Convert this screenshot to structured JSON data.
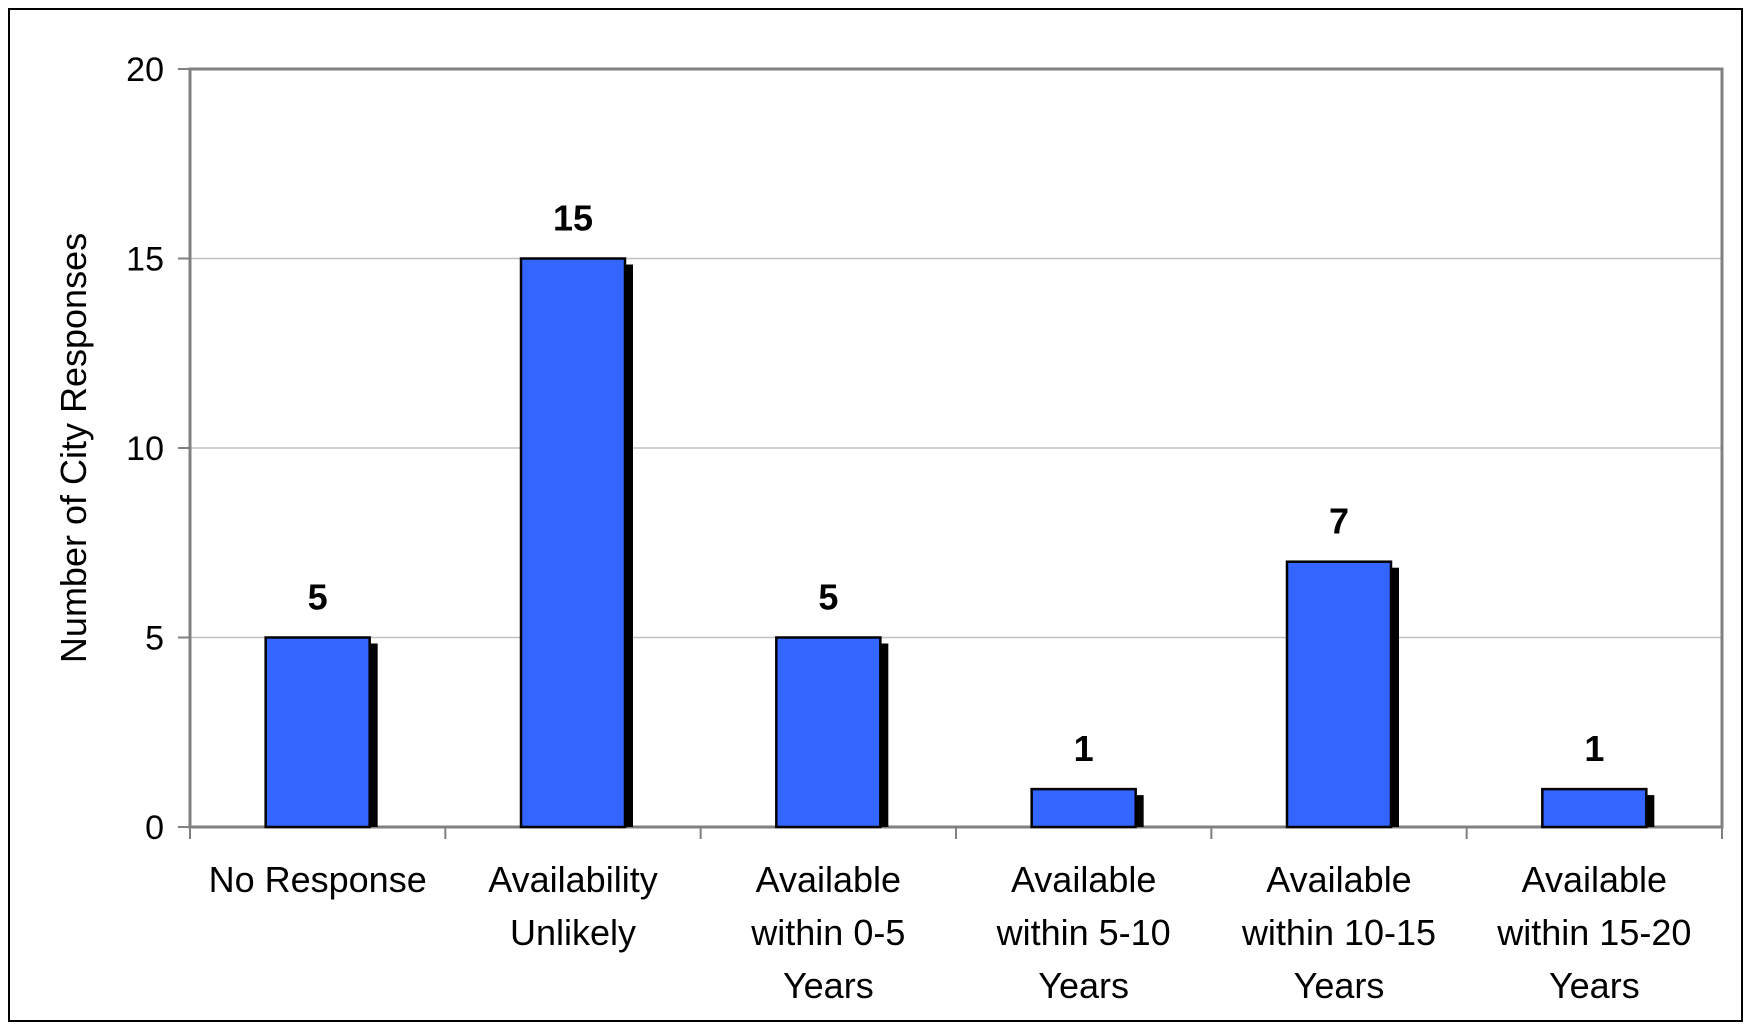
{
  "chart_data": {
    "type": "bar",
    "title": "",
    "xlabel": "",
    "ylabel": "Number of City Responses",
    "ylim": [
      0,
      20
    ],
    "yticks": [
      0,
      5,
      10,
      15,
      20
    ],
    "grid": true,
    "categories": [
      [
        "No Response"
      ],
      [
        "Availability",
        "Unlikely"
      ],
      [
        "Available",
        "within 0-5",
        "Years"
      ],
      [
        "Available",
        "within 5-10",
        "Years"
      ],
      [
        "Available",
        "within 10-15",
        "Years"
      ],
      [
        "Available",
        "within 15-20",
        "Years"
      ]
    ],
    "values": [
      5,
      15,
      5,
      1,
      7,
      1
    ],
    "data_labels": [
      "5",
      "15",
      "5",
      "1",
      "7",
      "1"
    ],
    "bar_color": "#3366FF",
    "shadow_color": "#000000",
    "gridline_color": "#C0C0C0",
    "axis_color": "#808080"
  }
}
